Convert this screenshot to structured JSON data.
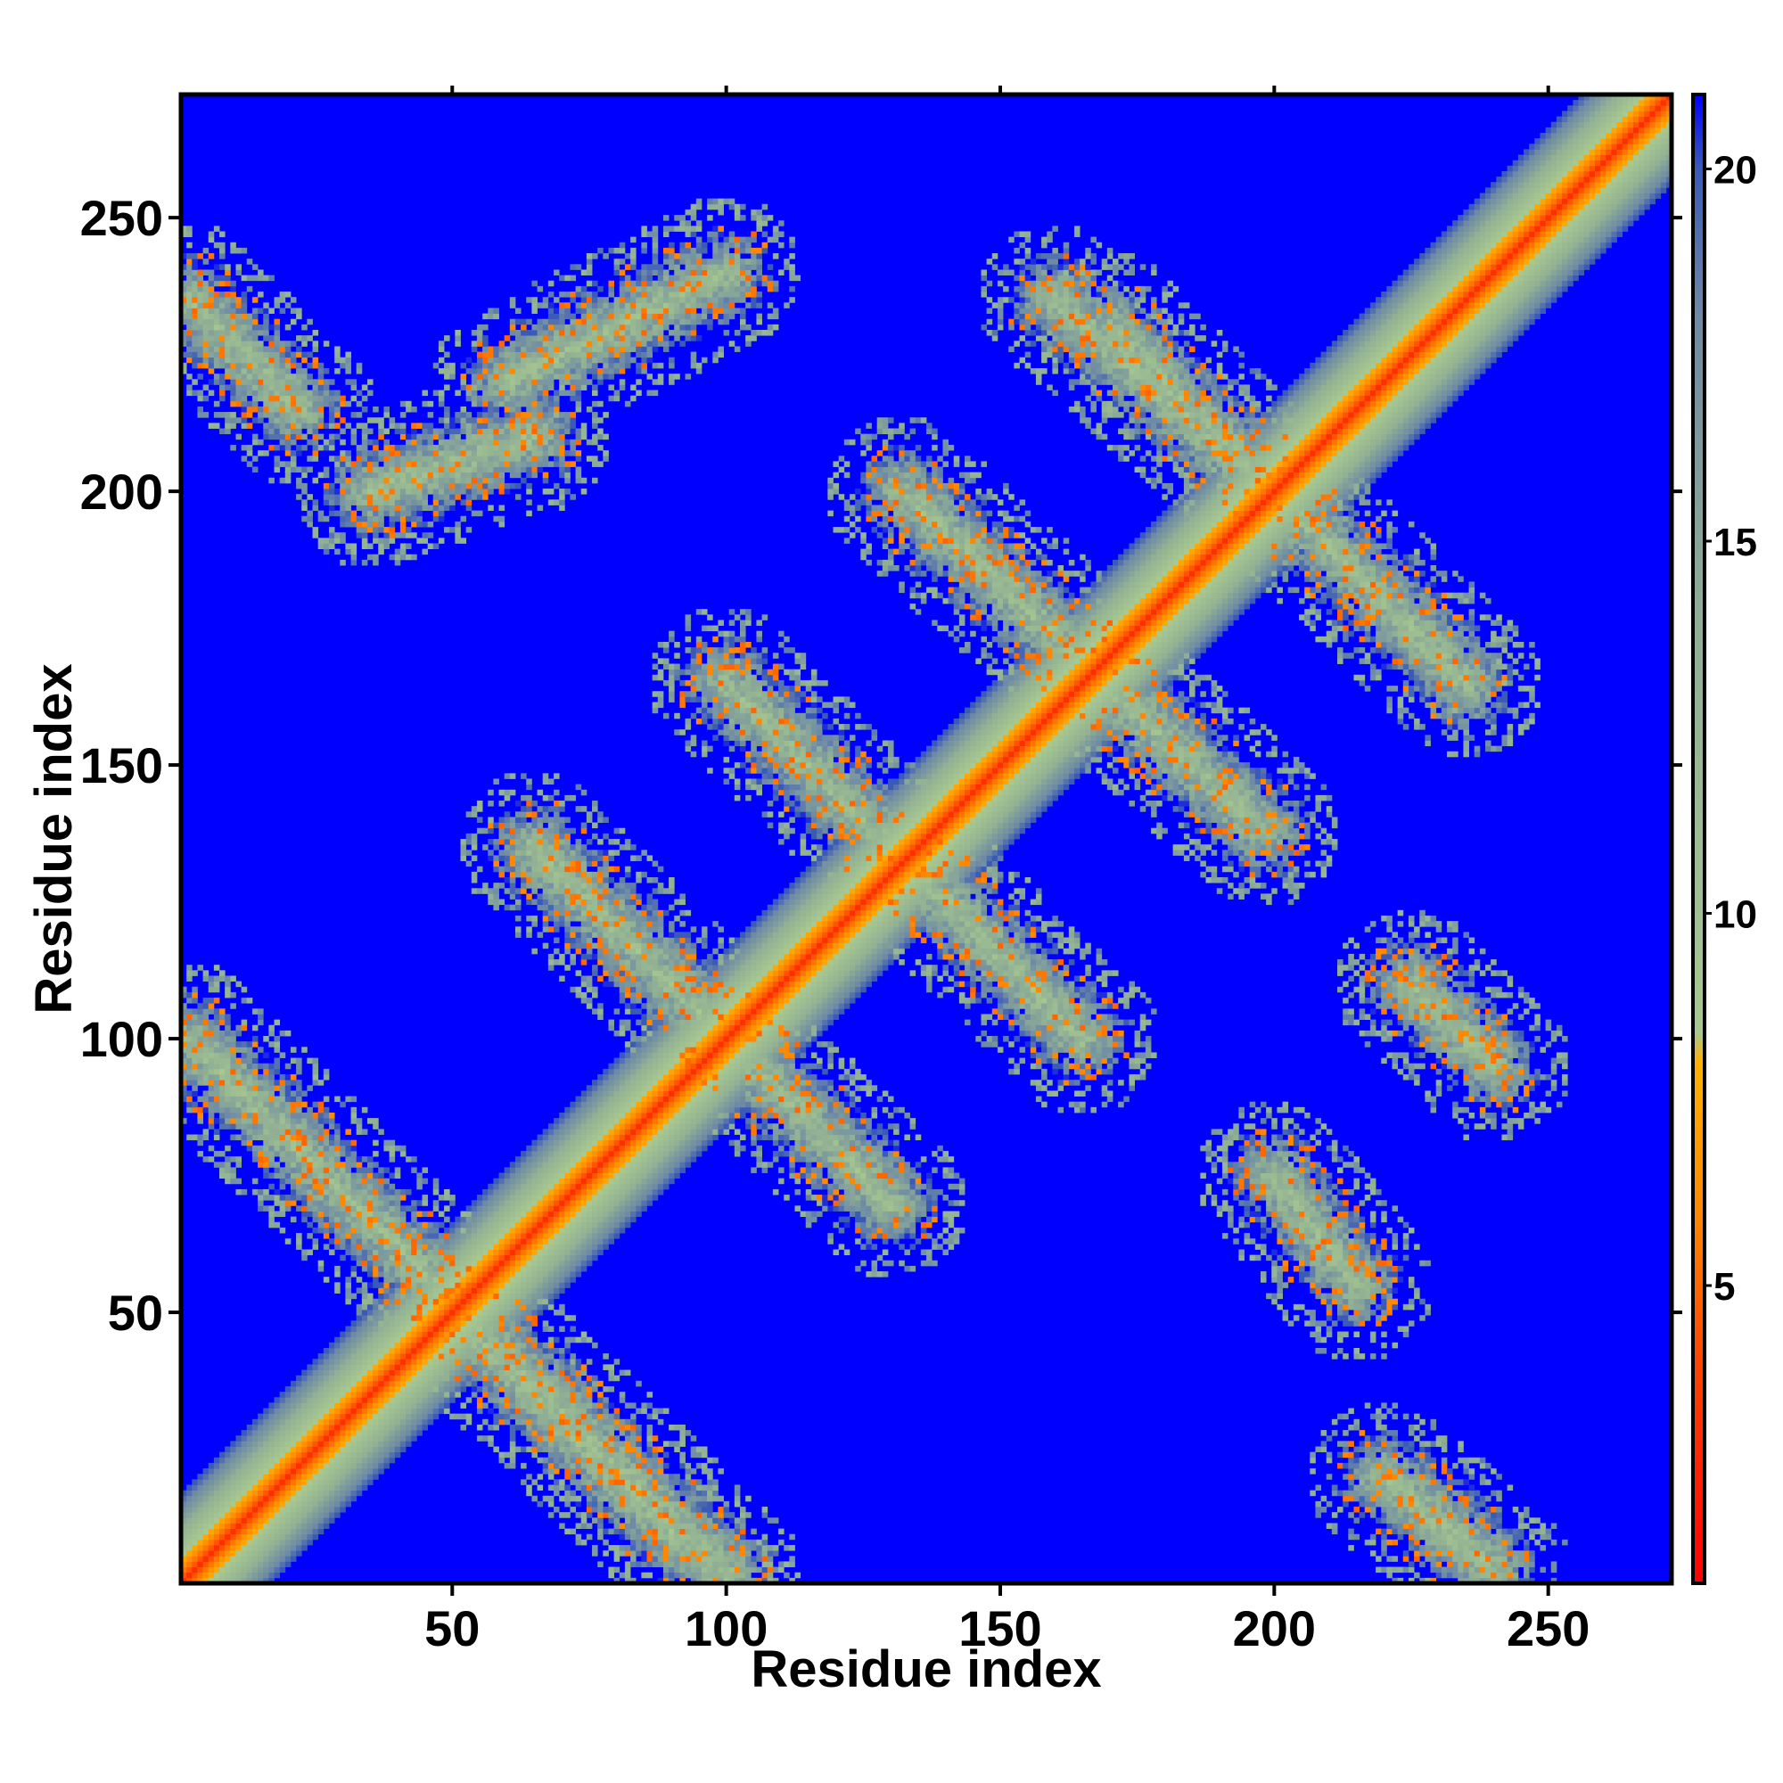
{
  "chart_data": {
    "type": "heatmap",
    "title": "",
    "xlabel": "Residue index",
    "ylabel": "Residue index",
    "xlim": [
      1,
      272
    ],
    "ylim": [
      1,
      272
    ],
    "x_ticks": [
      50,
      100,
      150,
      200,
      250
    ],
    "y_ticks": [
      50,
      100,
      150,
      200,
      250
    ],
    "x_tick_labels": [
      "50",
      "100",
      "150",
      "200",
      "250"
    ],
    "y_tick_labels": [
      "50",
      "100",
      "150",
      "200",
      "250"
    ],
    "colorbar": {
      "range": [
        1,
        21
      ],
      "ticks": [
        5,
        10,
        15,
        20
      ],
      "tick_labels": [
        "5",
        "10",
        "15",
        "20"
      ],
      "stops": [
        {
          "value": 1,
          "color": "#ff0000"
        },
        {
          "value": 4,
          "color": "#ff4400"
        },
        {
          "value": 6,
          "color": "#ff8800"
        },
        {
          "value": 8,
          "color": "#ffb000"
        },
        {
          "value": 8.4,
          "color": "#a8c890"
        },
        {
          "value": 14,
          "color": "#8fae94"
        },
        {
          "value": 18,
          "color": "#6e8aa5"
        },
        {
          "value": 20,
          "color": "#3a5ab8"
        },
        {
          "value": 21,
          "color": "#0000ff"
        }
      ]
    },
    "background_value": 21,
    "diagonal": {
      "from": 1,
      "to": 272
    },
    "off_diagonal_bands": [
      {
        "x0": 2,
        "y0": 100,
        "x1": 100,
        "y1": 2
      },
      {
        "x0": 52,
        "y0": 48,
        "x1": 98,
        "y1": 2
      },
      {
        "x0": 2,
        "y0": 235,
        "x1": 22,
        "y1": 215
      },
      {
        "x0": 65,
        "y0": 135,
        "x1": 130,
        "y1": 70
      },
      {
        "x0": 100,
        "y0": 165,
        "x1": 165,
        "y1": 100
      },
      {
        "x0": 132,
        "y0": 200,
        "x1": 198,
        "y1": 138
      },
      {
        "x0": 170,
        "y0": 230,
        "x1": 230,
        "y1": 170
      },
      {
        "x0": 160,
        "y0": 235,
        "x1": 200,
        "y1": 200
      },
      {
        "x0": 200,
        "y0": 200,
        "x1": 235,
        "y1": 165
      },
      {
        "x0": 220,
        "y0": 20,
        "x1": 240,
        "y1": 3
      },
      {
        "x0": 200,
        "y0": 75,
        "x1": 215,
        "y1": 55
      },
      {
        "x0": 225,
        "y0": 110,
        "x1": 240,
        "y1": 95
      },
      {
        "x0": 60,
        "y0": 220,
        "x1": 100,
        "y1": 240
      },
      {
        "x0": 35,
        "y0": 200,
        "x1": 65,
        "y1": 210
      }
    ]
  }
}
